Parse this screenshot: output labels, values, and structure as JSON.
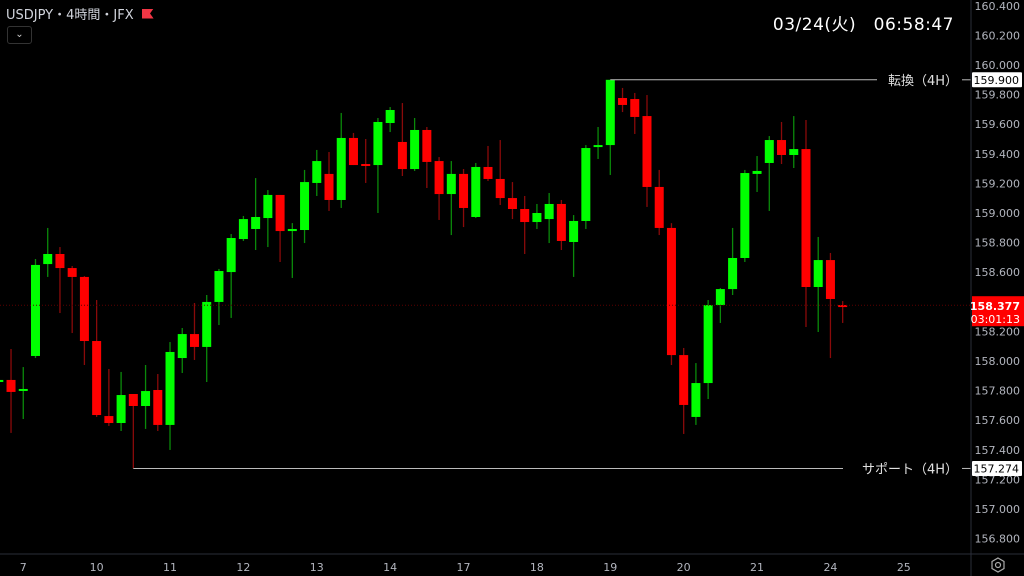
{
  "header": {
    "title": "USDJPY・4時間・JFX",
    "clock": "03/24(火)　06:58:47",
    "icons": [
      "flag-icon",
      "chevron-down-icon",
      "settings-icon"
    ]
  },
  "colors": {
    "background": "#000000",
    "up": "#00ff00",
    "down": "#ff0000",
    "axis_text": "#b2b5be",
    "label_bg": "#ffffff",
    "price_label_bg": "#ff0000"
  },
  "chart_data": {
    "type": "candlestick",
    "symbol": "USDJPY",
    "timeframe": "4時間",
    "ylim": [
      156.75,
      160.45
    ],
    "y_ticks": [
      "160.400",
      "160.200",
      "160.000",
      "159.800",
      "159.600",
      "159.400",
      "159.200",
      "159.000",
      "158.800",
      "158.600",
      "158.200",
      "158.000",
      "157.800",
      "157.600",
      "157.400",
      "157.200",
      "157.000",
      "156.800"
    ],
    "x_ticks": [
      {
        "label": "7",
        "bar": 2
      },
      {
        "label": "10",
        "bar": 8
      },
      {
        "label": "11",
        "bar": 14
      },
      {
        "label": "12",
        "bar": 20
      },
      {
        "label": "13",
        "bar": 26
      },
      {
        "label": "14",
        "bar": 32
      },
      {
        "label": "17",
        "bar": 38
      },
      {
        "label": "18",
        "bar": 44
      },
      {
        "label": "19",
        "bar": 50
      },
      {
        "label": "20",
        "bar": 56
      },
      {
        "label": "21",
        "bar": 62
      },
      {
        "label": "24",
        "bar": 68
      },
      {
        "label": "25",
        "bar": 74
      }
    ],
    "ohlc": [
      [
        157.858,
        157.885,
        157.831,
        157.872
      ],
      [
        157.872,
        158.081,
        157.514,
        157.791
      ],
      [
        157.804,
        157.959,
        157.608,
        157.811
      ],
      [
        158.034,
        158.689,
        158.02,
        158.649
      ],
      [
        158.655,
        158.899,
        158.568,
        158.723
      ],
      [
        158.723,
        158.77,
        158.324,
        158.628
      ],
      [
        158.628,
        158.642,
        158.189,
        158.568
      ],
      [
        158.568,
        158.574,
        157.973,
        158.135
      ],
      [
        158.135,
        158.412,
        157.622,
        157.635
      ],
      [
        157.628,
        157.946,
        157.561,
        157.581
      ],
      [
        157.581,
        157.926,
        157.527,
        157.77
      ],
      [
        157.777,
        157.777,
        157.274,
        157.696
      ],
      [
        157.696,
        157.973,
        157.541,
        157.797
      ],
      [
        157.804,
        157.912,
        157.527,
        157.568
      ],
      [
        157.568,
        158.128,
        157.399,
        158.061
      ],
      [
        158.02,
        158.223,
        157.919,
        158.182
      ],
      [
        158.182,
        158.392,
        158.007,
        158.095
      ],
      [
        158.095,
        158.446,
        157.858,
        158.399
      ],
      [
        158.399,
        158.622,
        158.243,
        158.608
      ],
      [
        158.601,
        158.858,
        158.291,
        158.831
      ],
      [
        158.824,
        158.98,
        158.811,
        158.959
      ],
      [
        158.892,
        159.236,
        158.75,
        158.973
      ],
      [
        158.966,
        159.155,
        158.77,
        159.122
      ],
      [
        159.122,
        159.122,
        158.669,
        158.878
      ],
      [
        158.878,
        158.932,
        158.561,
        158.892
      ],
      [
        158.885,
        159.291,
        158.797,
        159.209
      ],
      [
        159.203,
        159.426,
        159.115,
        159.351
      ],
      [
        159.264,
        159.412,
        159.014,
        159.088
      ],
      [
        159.088,
        159.676,
        159.034,
        159.507
      ],
      [
        159.507,
        159.541,
        159.324,
        159.324
      ],
      [
        159.331,
        159.5,
        159.203,
        159.324
      ],
      [
        159.324,
        159.642,
        159.0,
        159.615
      ],
      [
        159.608,
        159.716,
        159.547,
        159.696
      ],
      [
        159.48,
        159.743,
        159.25,
        159.297
      ],
      [
        159.297,
        159.642,
        159.284,
        159.561
      ],
      [
        159.561,
        159.581,
        159.169,
        159.345
      ],
      [
        159.351,
        159.378,
        158.953,
        159.128
      ],
      [
        159.128,
        159.351,
        158.851,
        159.264
      ],
      [
        159.264,
        159.297,
        158.905,
        159.034
      ],
      [
        158.973,
        159.338,
        158.966,
        159.311
      ],
      [
        159.311,
        159.453,
        159.216,
        159.23
      ],
      [
        159.23,
        159.493,
        159.054,
        159.101
      ],
      [
        159.101,
        159.209,
        158.959,
        159.027
      ],
      [
        159.027,
        159.115,
        158.723,
        158.939
      ],
      [
        158.939,
        159.061,
        158.892,
        159.0
      ],
      [
        158.959,
        159.135,
        158.797,
        159.061
      ],
      [
        159.061,
        159.088,
        158.75,
        158.811
      ],
      [
        158.804,
        158.986,
        158.568,
        158.946
      ],
      [
        158.946,
        159.459,
        158.892,
        159.439
      ],
      [
        159.446,
        159.581,
        159.365,
        159.459
      ],
      [
        159.459,
        159.9,
        159.257,
        159.9
      ],
      [
        159.777,
        159.845,
        159.682,
        159.73
      ],
      [
        159.77,
        159.811,
        159.534,
        159.649
      ],
      [
        159.655,
        159.797,
        159.041,
        159.176
      ],
      [
        159.176,
        159.291,
        158.851,
        158.899
      ],
      [
        158.899,
        158.932,
        157.973,
        158.04
      ],
      [
        158.04,
        158.088,
        157.507,
        157.703
      ],
      [
        157.622,
        157.986,
        157.568,
        157.851
      ],
      [
        157.851,
        158.412,
        157.743,
        158.378
      ],
      [
        158.378,
        158.493,
        158.257,
        158.486
      ],
      [
        158.486,
        158.899,
        158.446,
        158.696
      ],
      [
        158.696,
        159.291,
        158.669,
        159.27
      ],
      [
        159.264,
        159.385,
        159.142,
        159.284
      ],
      [
        159.338,
        159.52,
        159.014,
        159.493
      ],
      [
        159.493,
        159.615,
        159.331,
        159.392
      ],
      [
        159.392,
        159.655,
        159.304,
        159.432
      ],
      [
        159.432,
        159.628,
        158.23,
        158.5
      ],
      [
        158.5,
        158.838,
        158.196,
        158.682
      ],
      [
        158.682,
        158.73,
        158.02,
        158.419
      ],
      [
        158.378,
        158.405,
        158.257,
        158.377
      ]
    ],
    "current_price": {
      "value": 158.377,
      "label": "158.377",
      "countdown": "03:01:13"
    },
    "horizontal_lines": [
      {
        "name": "転換（4H）",
        "price": 159.9,
        "label": "159.900",
        "from_bar": 50
      },
      {
        "name": "サポート（4H）",
        "price": 157.274,
        "label": "157.274",
        "from_bar": 11
      }
    ],
    "grid": false
  }
}
